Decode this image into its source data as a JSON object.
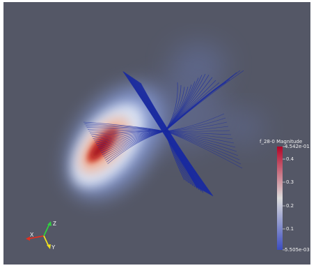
{
  "viewport": {
    "background": "#545766"
  },
  "colorbar": {
    "title": "f_28-0 Magnitude",
    "max_label": "4.542e-01",
    "min_label": "5.505e-03",
    "ticks": [
      "0.4",
      "0.3",
      "0.2",
      "0.1"
    ],
    "colors": {
      "high": "#b40426",
      "mid": "#dddddd",
      "low": "#3b4cc0"
    }
  },
  "orientation_axes": {
    "x_label": "X",
    "y_label": "Y",
    "z_label": "Z",
    "x_color": "#e03020",
    "y_color": "#f0e020",
    "z_color": "#30d040"
  },
  "streamlines": {
    "color": "#1a2aa0"
  }
}
